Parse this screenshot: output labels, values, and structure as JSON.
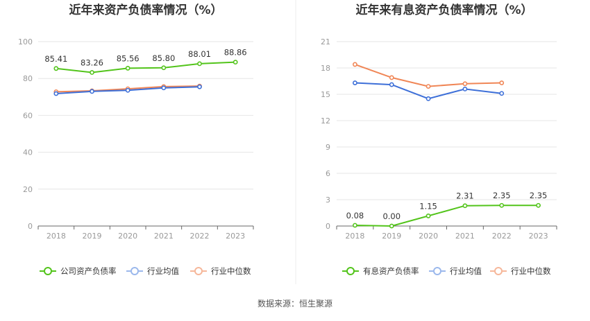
{
  "source_note": "数据来源：恒生聚源",
  "chart_data": [
    {
      "type": "line",
      "title": "近年来资产负债率情况（%）",
      "categories": [
        "2018",
        "2019",
        "2020",
        "2021",
        "2022",
        "2023"
      ],
      "ylim": [
        0,
        100
      ],
      "yticks": [
        0,
        20,
        40,
        60,
        80,
        100
      ],
      "grid": true,
      "legend_position": "bottom",
      "series": [
        {
          "name": "公司资产负债率",
          "color": "#52c41a",
          "labels": true,
          "values": [
            85.41,
            83.26,
            85.56,
            85.8,
            88.01,
            88.86
          ]
        },
        {
          "name": "行业均值",
          "color": "#3d6fd8",
          "labels": false,
          "values": [
            71.8,
            73.0,
            73.6,
            74.9,
            75.5,
            null
          ]
        },
        {
          "name": "行业中位数",
          "color": "#f08656",
          "labels": false,
          "values": [
            72.8,
            73.3,
            74.4,
            75.6,
            75.9,
            null
          ]
        }
      ]
    },
    {
      "type": "line",
      "title": "近年来有息资产负债率情况（%）",
      "categories": [
        "2018",
        "2019",
        "2020",
        "2021",
        "2022",
        "2023"
      ],
      "ylim": [
        0,
        21
      ],
      "yticks": [
        0,
        3,
        6,
        9,
        12,
        15,
        18,
        21
      ],
      "grid": true,
      "legend_position": "bottom",
      "series": [
        {
          "name": "有息资产负债率",
          "color": "#52c41a",
          "labels": true,
          "values": [
            0.08,
            0.0,
            1.15,
            2.31,
            2.35,
            2.35
          ]
        },
        {
          "name": "行业均值",
          "color": "#3d6fd8",
          "labels": false,
          "values": [
            16.3,
            16.1,
            14.5,
            15.6,
            15.1,
            null
          ]
        },
        {
          "name": "行业中位数",
          "color": "#f08656",
          "labels": false,
          "values": [
            18.4,
            16.9,
            15.9,
            16.2,
            16.3,
            null
          ]
        }
      ]
    }
  ]
}
